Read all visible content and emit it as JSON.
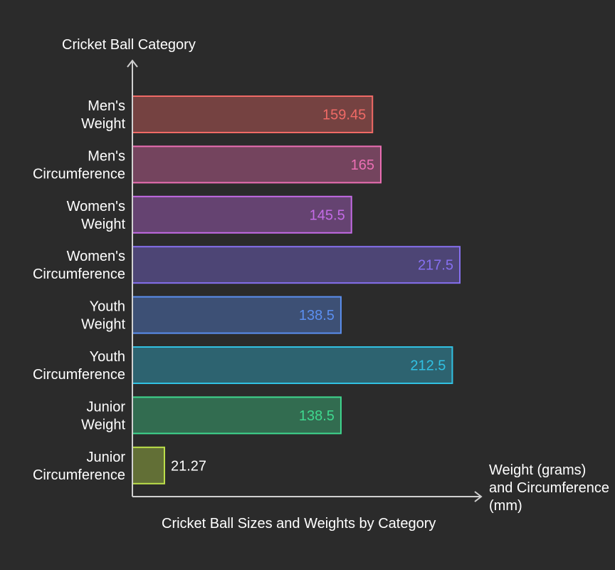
{
  "chart_data": {
    "type": "bar",
    "orientation": "horizontal",
    "title": "",
    "caption": "Cricket Ball Sizes and Weights by Category",
    "ylabel": "Cricket Ball Category",
    "xlabel": "Weight (grams) and Circumference (mm)",
    "categories": [
      [
        "Men's",
        "Weight"
      ],
      [
        "Men's",
        "Circumference"
      ],
      [
        "Women's",
        "Weight"
      ],
      [
        "Women's",
        "Circumference"
      ],
      [
        "Youth",
        "Weight"
      ],
      [
        "Youth",
        "Circumference"
      ],
      [
        "Junior",
        "Weight"
      ],
      [
        "Junior",
        "Circumference"
      ]
    ],
    "values": [
      159.45,
      165,
      145.5,
      217.5,
      138.5,
      212.5,
      138.5,
      21.27
    ],
    "value_labels": [
      "159.45",
      "165",
      "145.5",
      "217.5",
      "138.5",
      "212.5",
      "138.5",
      "21.27"
    ],
    "colors": [
      "#f06a66",
      "#ec6fb4",
      "#c46be6",
      "#8670f0",
      "#5b8ff0",
      "#31c1e3",
      "#3fd88f",
      "#bde04a"
    ],
    "xlim": [
      0,
      217.5
    ],
    "grid": false,
    "legend": "none"
  }
}
